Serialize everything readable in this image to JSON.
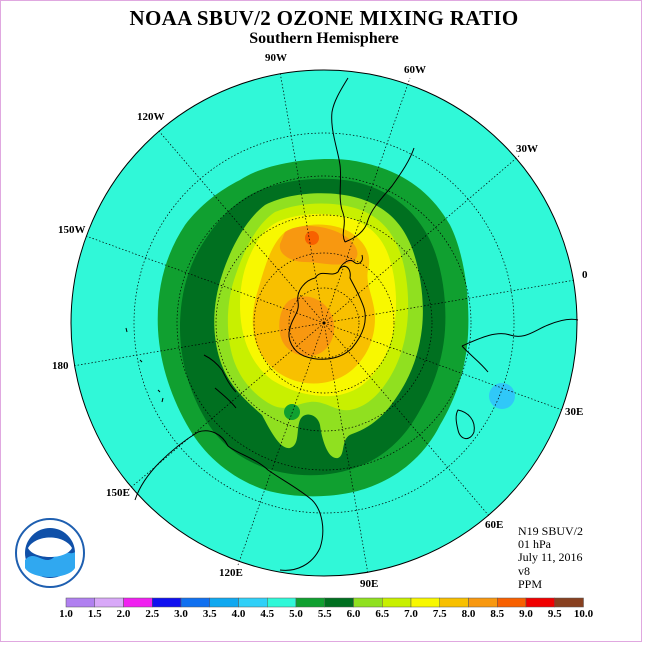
{
  "title": "NOAA SBUV/2 OZONE MIXING RATIO",
  "subtitle": "Southern Hemisphere",
  "longitude_labels": [
    {
      "id": "lon-90w",
      "text": "90W"
    },
    {
      "id": "lon-60w",
      "text": "60W"
    },
    {
      "id": "lon-30w",
      "text": "30W"
    },
    {
      "id": "lon-0",
      "text": "0"
    },
    {
      "id": "lon-30e",
      "text": "30E"
    },
    {
      "id": "lon-60e",
      "text": "60E"
    },
    {
      "id": "lon-90e",
      "text": "90E"
    },
    {
      "id": "lon-120e",
      "text": "120E"
    },
    {
      "id": "lon-150e",
      "text": "150E"
    },
    {
      "id": "lon-180",
      "text": "180"
    },
    {
      "id": "lon-150w",
      "text": "150W"
    },
    {
      "id": "lon-120w",
      "text": "120W"
    }
  ],
  "info": {
    "satellite": "N19 SBUV/2",
    "level": "01 hPa",
    "date": "July 11, 2016",
    "version": "v8",
    "units": "PPM"
  },
  "logo_text": "NOAA",
  "colorbar": {
    "colors": [
      "#b080f0",
      "#d8a8f8",
      "#f020f0",
      "#1010f0",
      "#1070f0",
      "#10a8f0",
      "#30d0f8",
      "#30f8d8",
      "#10a030",
      "#007020",
      "#90e020",
      "#c8f000",
      "#f8f800",
      "#f8c000",
      "#f89810",
      "#f86000",
      "#f00000",
      "#884020"
    ],
    "labels": [
      "1.0",
      "1.5",
      "2.0",
      "2.5",
      "3.0",
      "3.5",
      "4.0",
      "4.5",
      "5.0",
      "5.5",
      "6.0",
      "6.5",
      "7.0",
      "7.5",
      "8.0",
      "8.5",
      "9.0",
      "9.5",
      "10.0"
    ]
  },
  "colors": {
    "background_field": "#30f8d8",
    "level_5_0": "#10a030",
    "level_5_5": "#007020",
    "level_6_0": "#90e020",
    "level_6_5": "#c8f000",
    "level_7_0": "#f8f800",
    "level_7_5": "#f8c000",
    "level_8_0": "#f89810",
    "level_8_5": "#f86000",
    "low_spot": "#30c8f8"
  }
}
